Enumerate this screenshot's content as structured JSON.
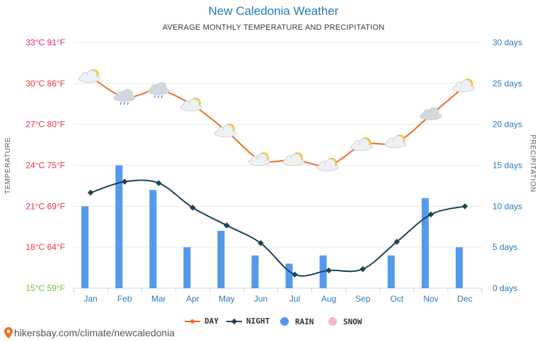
{
  "header": {
    "title": "New Caledonia Weather",
    "subtitle": "AVERAGE MONTHLY TEMPERATURE AND PRECIPITATION"
  },
  "axes": {
    "left_label": "TEMPERATURE",
    "right_label": "PRECIPITATION",
    "left_ticks": [
      "15°C 59°F",
      "18°C 64°F",
      "21°C 69°F",
      "24°C 75°F",
      "27°C 80°F",
      "30°C 86°F",
      "33°C 91°F"
    ],
    "right_ticks": [
      "0 days",
      "5 days",
      "10 days",
      "15 days",
      "20 days",
      "25 days",
      "30 days"
    ],
    "left_tick_colors": [
      "#6bbf3f",
      "#e8303a",
      "#e8303a",
      "#e8303a",
      "#e8303a",
      "#e8303a",
      "#e0245e"
    ]
  },
  "legend": {
    "day": "DAY",
    "night": "NIGHT",
    "rain": "RAIN",
    "snow": "SNOW"
  },
  "source": "hikersbay.com/climate/newcaledonia",
  "colors": {
    "day": "#f26b21",
    "night": "#1a4457",
    "rain": "#5599ee",
    "snow": "#f4b6c9",
    "right_axis": "#2a7ab9"
  },
  "chart_data": {
    "type": "bar",
    "categories": [
      "Jan",
      "Feb",
      "Mar",
      "Apr",
      "May",
      "Jun",
      "Jul",
      "Aug",
      "Sep",
      "Oct",
      "Nov",
      "Dec"
    ],
    "ylim_temp_c": [
      15,
      33
    ],
    "ylim_days": [
      0,
      30
    ],
    "series": [
      {
        "name": "DAY",
        "kind": "line",
        "unit": "°C",
        "values": [
          30.5,
          29.0,
          29.5,
          28.4,
          26.5,
          24.4,
          24.4,
          24.0,
          25.5,
          25.7,
          27.7,
          29.8
        ]
      },
      {
        "name": "NIGHT",
        "kind": "line",
        "unit": "°C",
        "values": [
          22.0,
          22.8,
          22.7,
          20.9,
          19.6,
          18.3,
          16.0,
          16.3,
          16.4,
          18.4,
          20.4,
          21.0
        ]
      },
      {
        "name": "RAIN",
        "kind": "bar",
        "unit": "days",
        "values": [
          10,
          15,
          12,
          5,
          7,
          4,
          3,
          4,
          0,
          4,
          11,
          5
        ]
      },
      {
        "name": "SNOW",
        "kind": "bar",
        "unit": "days",
        "values": [
          0,
          0,
          0,
          0,
          0,
          0,
          0,
          0,
          0,
          0,
          0,
          0
        ]
      }
    ],
    "weather_icons": [
      "sun-cloud",
      "cloud-rain",
      "cloud-rain",
      "sun-cloud",
      "sun-cloud",
      "sun-cloud",
      "sun-cloud",
      "sun-cloud",
      "sun-cloud",
      "sun-cloud",
      "cloud",
      "sun-cloud"
    ],
    "grid": true,
    "legend_position": "bottom"
  }
}
